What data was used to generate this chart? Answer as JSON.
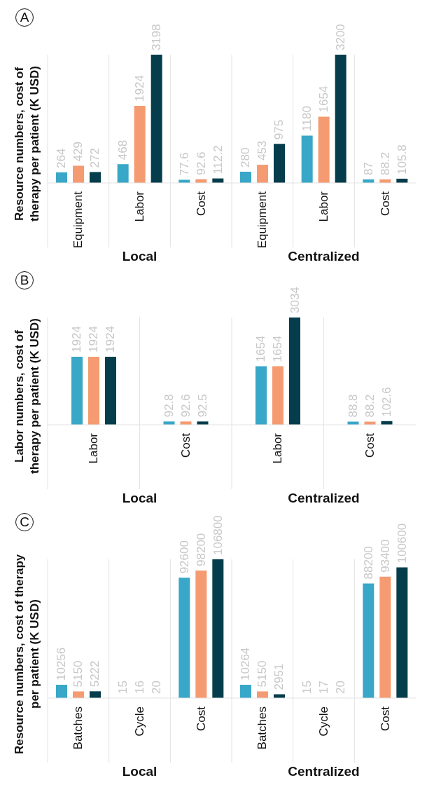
{
  "chart_data": [
    {
      "type": "bar",
      "title": "A",
      "ylabel": "Resource numbers, cost of therapy per patient (K USD)",
      "categories": [
        "Equipment",
        "Labor",
        "Cost",
        "Equipment",
        "Labor",
        "Cost"
      ],
      "series": [
        {
          "color": "#38a7c8",
          "values": [
            264,
            468,
            77.6,
            280,
            1180,
            87
          ]
        },
        {
          "color": "#f59b72",
          "values": [
            429,
            1924,
            92.6,
            453,
            1654,
            88.2
          ]
        },
        {
          "color": "#053d4c",
          "values": [
            272,
            3198,
            112.2,
            975,
            3200,
            105.8
          ]
        }
      ],
      "annotations": [
        "Local",
        "Centralized"
      ],
      "data_labels": true,
      "grid": "x",
      "legend": false
    },
    {
      "type": "bar",
      "title": "B",
      "ylabel": "Labor numbers, cost of therapy per patient (K USD)",
      "categories": [
        "Labor",
        "Cost",
        "Labor",
        "Cost"
      ],
      "series": [
        {
          "color": "#38a7c8",
          "values": [
            1924,
            92.8,
            1654,
            88.8
          ]
        },
        {
          "color": "#f59b72",
          "values": [
            1924,
            92.6,
            1654,
            88.2
          ]
        },
        {
          "color": "#053d4c",
          "values": [
            1924,
            92.5,
            3034,
            102.6
          ]
        }
      ],
      "annotations": [
        "Local",
        "Centralized"
      ],
      "data_labels": true,
      "grid": "x",
      "legend": false
    },
    {
      "type": "bar",
      "title": "C",
      "ylabel": "Resource numbers, cost of therapy per patient (K USD)",
      "categories": [
        "Batches",
        "Cycle",
        "Cost",
        "Batches",
        "Cycle",
        "Cost"
      ],
      "series": [
        {
          "color": "#38a7c8",
          "values": [
            10256,
            15,
            92600,
            10264,
            15,
            88200
          ]
        },
        {
          "color": "#f59b72",
          "values": [
            5150,
            16,
            98200,
            5150,
            17,
            93400
          ]
        },
        {
          "color": "#053d4c",
          "values": [
            5222,
            20,
            106800,
            2951,
            20,
            100600
          ]
        }
      ],
      "annotations": [
        "Local",
        "Centralized"
      ],
      "data_labels": true,
      "grid": "x",
      "legend": false
    }
  ]
}
